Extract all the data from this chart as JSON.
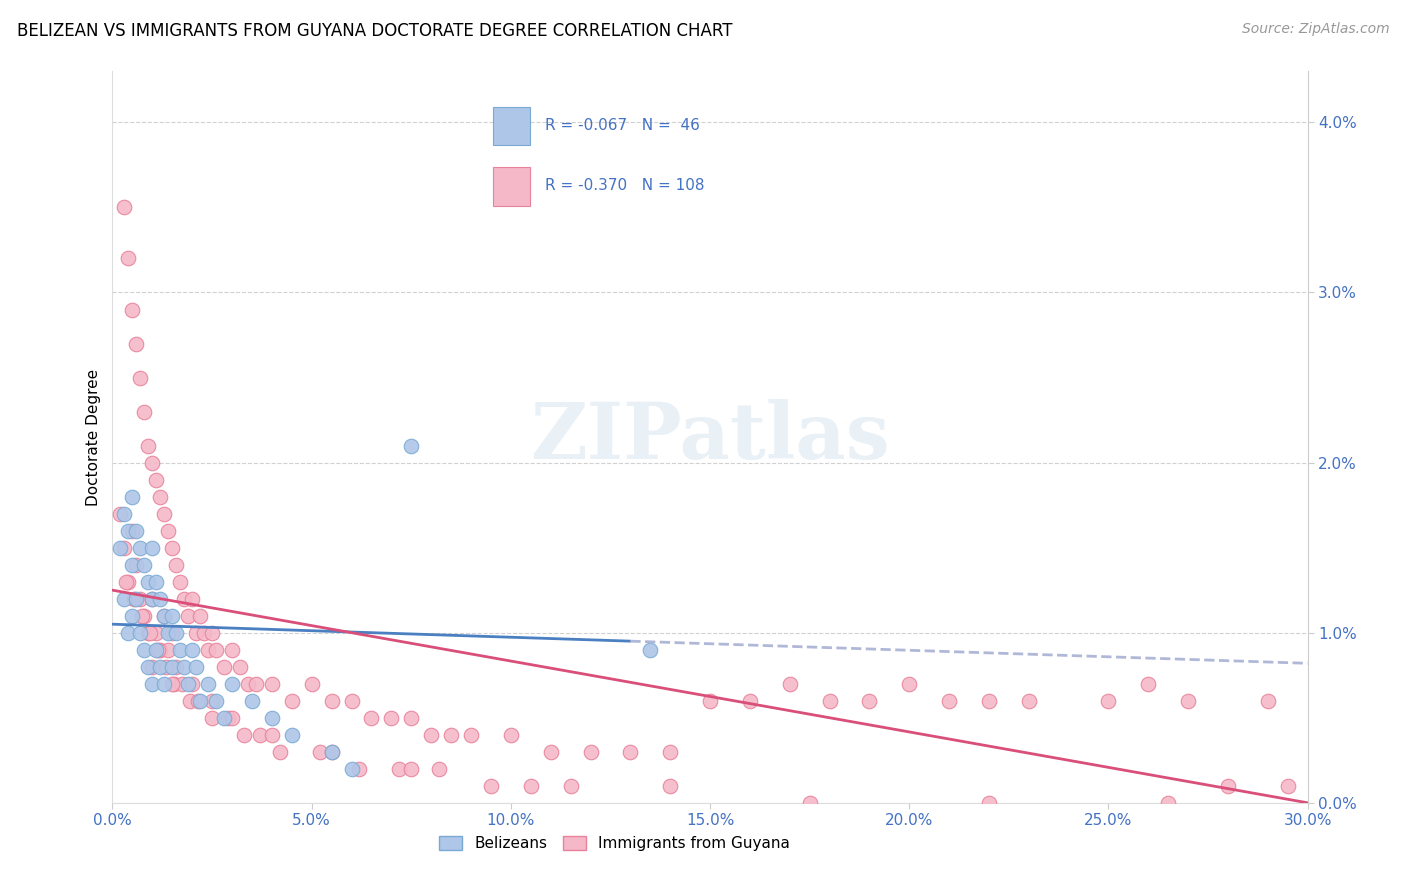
{
  "title": "BELIZEAN VS IMMIGRANTS FROM GUYANA DOCTORATE DEGREE CORRELATION CHART",
  "source": "Source: ZipAtlas.com",
  "xlabel_vals": [
    0.0,
    5.0,
    10.0,
    15.0,
    20.0,
    25.0,
    30.0
  ],
  "ylabel_vals": [
    0.0,
    1.0,
    2.0,
    3.0,
    4.0
  ],
  "xlim": [
    0.0,
    30.0
  ],
  "ylim": [
    0.0,
    4.3
  ],
  "label_blue": "Belizeans",
  "label_pink": "Immigrants from Guyana",
  "watermark": "ZIPatlas",
  "blue_color": "#aec6e8",
  "pink_color": "#f4b8c8",
  "blue_edge": "#7aaad4",
  "pink_edge": "#e8829a",
  "trend_blue_solid_color": "#4a7fc1",
  "trend_pink_solid_color": "#d94f7a",
  "trend_dash_color": "#b0b8d8",
  "legend_border_color": "#aac4e0",
  "tick_color": "#4472c4",
  "blue_scatter_x": [
    0.2,
    0.3,
    0.3,
    0.4,
    0.4,
    0.5,
    0.5,
    0.5,
    0.6,
    0.6,
    0.7,
    0.7,
    0.8,
    0.8,
    0.9,
    0.9,
    1.0,
    1.0,
    1.0,
    1.1,
    1.1,
    1.2,
    1.2,
    1.3,
    1.3,
    1.4,
    1.5,
    1.5,
    1.6,
    1.7,
    1.8,
    1.9,
    2.0,
    2.1,
    2.2,
    2.4,
    2.6,
    2.8,
    3.0,
    3.5,
    4.0,
    4.5,
    5.5,
    6.0,
    7.5,
    13.5
  ],
  "blue_scatter_y": [
    1.5,
    1.7,
    1.2,
    1.6,
    1.0,
    1.8,
    1.4,
    1.1,
    1.6,
    1.2,
    1.5,
    1.0,
    1.4,
    0.9,
    1.3,
    0.8,
    1.5,
    1.2,
    0.7,
    1.3,
    0.9,
    1.2,
    0.8,
    1.1,
    0.7,
    1.0,
    1.1,
    0.8,
    1.0,
    0.9,
    0.8,
    0.7,
    0.9,
    0.8,
    0.6,
    0.7,
    0.6,
    0.5,
    0.7,
    0.6,
    0.5,
    0.4,
    0.3,
    0.2,
    2.1,
    0.9
  ],
  "pink_scatter_x": [
    0.2,
    0.3,
    0.3,
    0.4,
    0.4,
    0.5,
    0.5,
    0.6,
    0.6,
    0.7,
    0.7,
    0.8,
    0.8,
    0.9,
    0.9,
    1.0,
    1.0,
    1.1,
    1.1,
    1.2,
    1.2,
    1.3,
    1.3,
    1.4,
    1.4,
    1.5,
    1.5,
    1.6,
    1.6,
    1.7,
    1.8,
    1.9,
    2.0,
    2.1,
    2.2,
    2.3,
    2.4,
    2.5,
    2.6,
    2.8,
    3.0,
    3.2,
    3.4,
    3.6,
    4.0,
    4.5,
    5.0,
    5.5,
    6.0,
    6.5,
    7.0,
    7.5,
    8.0,
    8.5,
    9.0,
    10.0,
    11.0,
    12.0,
    13.0,
    14.0,
    15.0,
    16.0,
    17.0,
    18.0,
    19.0,
    20.0,
    21.0,
    22.0,
    23.0,
    25.0,
    26.0,
    27.0,
    28.0,
    29.0,
    0.35,
    0.55,
    0.75,
    0.95,
    1.15,
    1.35,
    1.55,
    1.75,
    1.95,
    2.15,
    2.5,
    2.9,
    3.3,
    3.7,
    4.2,
    5.2,
    6.2,
    7.2,
    8.2,
    9.5,
    11.5,
    14.0,
    17.5,
    22.0,
    26.5,
    29.5,
    1.0,
    1.5,
    2.0,
    2.5,
    3.0,
    4.0,
    5.5,
    7.5,
    10.5
  ],
  "pink_scatter_y": [
    1.7,
    3.5,
    1.5,
    3.2,
    1.3,
    2.9,
    1.6,
    2.7,
    1.4,
    2.5,
    1.2,
    2.3,
    1.1,
    2.1,
    1.0,
    2.0,
    1.2,
    1.9,
    1.0,
    1.8,
    0.9,
    1.7,
    1.1,
    1.6,
    0.9,
    1.5,
    1.0,
    1.4,
    0.8,
    1.3,
    1.2,
    1.1,
    1.2,
    1.0,
    1.1,
    1.0,
    0.9,
    1.0,
    0.9,
    0.8,
    0.9,
    0.8,
    0.7,
    0.7,
    0.7,
    0.6,
    0.7,
    0.6,
    0.6,
    0.5,
    0.5,
    0.5,
    0.4,
    0.4,
    0.4,
    0.4,
    0.3,
    0.3,
    0.3,
    0.3,
    0.6,
    0.6,
    0.7,
    0.6,
    0.6,
    0.7,
    0.6,
    0.6,
    0.6,
    0.6,
    0.7,
    0.6,
    0.1,
    0.6,
    1.3,
    1.2,
    1.1,
    1.0,
    0.9,
    0.8,
    0.7,
    0.7,
    0.6,
    0.6,
    0.5,
    0.5,
    0.4,
    0.4,
    0.3,
    0.3,
    0.2,
    0.2,
    0.2,
    0.1,
    0.1,
    0.1,
    0.0,
    0.0,
    0.0,
    0.1,
    0.8,
    0.7,
    0.7,
    0.6,
    0.5,
    0.4,
    0.3,
    0.2,
    0.1
  ],
  "blue_trend_x0": 0.0,
  "blue_trend_x1": 30.0,
  "blue_trend_y0": 1.05,
  "blue_trend_y1": 0.82,
  "blue_solid_end": 13.0,
  "pink_trend_x0": 0.0,
  "pink_trend_x1": 30.0,
  "pink_trend_y0": 1.25,
  "pink_trend_y1": 0.0
}
